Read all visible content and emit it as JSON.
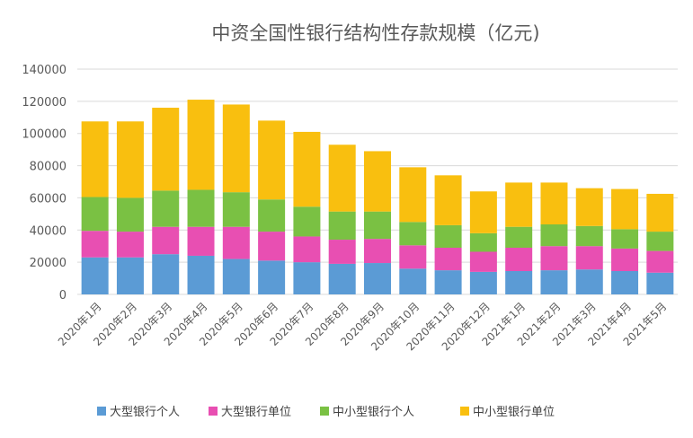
{
  "chart_data": {
    "type": "bar",
    "stacked": true,
    "title": "中资全国性银行结构性存款规模（亿元)",
    "xlabel": "",
    "ylabel": "",
    "ylim": [
      0,
      140000
    ],
    "yticks": [
      0,
      20000,
      40000,
      60000,
      80000,
      100000,
      120000,
      140000
    ],
    "grid": true,
    "legend": "bottom",
    "categories": [
      "2020年1月",
      "2020年2月",
      "2020年3月",
      "2020年4月",
      "2020年5月",
      "2020年6月",
      "2020年7月",
      "2020年8月",
      "2020年9月",
      "2020年10月",
      "2020年11月",
      "2020年12月",
      "2021年1月",
      "2021年2月",
      "2021年3月",
      "2021年4月",
      "2021年5月"
    ],
    "series": [
      {
        "name": "大型银行个人",
        "color": "#5b9bd5",
        "values": [
          23000,
          23000,
          25000,
          24000,
          22000,
          21000,
          20000,
          19000,
          19500,
          16000,
          15000,
          14000,
          14500,
          15000,
          15500,
          14500,
          13500
        ]
      },
      {
        "name": "大型银行单位",
        "color": "#e84fb2",
        "values": [
          16500,
          16000,
          17000,
          18000,
          20000,
          18000,
          16000,
          15000,
          15000,
          14500,
          14000,
          12500,
          14500,
          15000,
          14500,
          14000,
          13500
        ]
      },
      {
        "name": "中小型银行个人",
        "color": "#7ac143",
        "values": [
          21000,
          21000,
          22500,
          23000,
          21500,
          20000,
          18500,
          17500,
          17000,
          14500,
          14000,
          11500,
          13000,
          13500,
          12500,
          12000,
          12000
        ]
      },
      {
        "name": "中小型银行单位",
        "color": "#f9bf0f",
        "values": [
          47000,
          47500,
          51500,
          56000,
          54500,
          49000,
          46500,
          41500,
          37500,
          34000,
          31000,
          26000,
          27500,
          26000,
          23500,
          25000,
          23500
        ]
      }
    ]
  }
}
